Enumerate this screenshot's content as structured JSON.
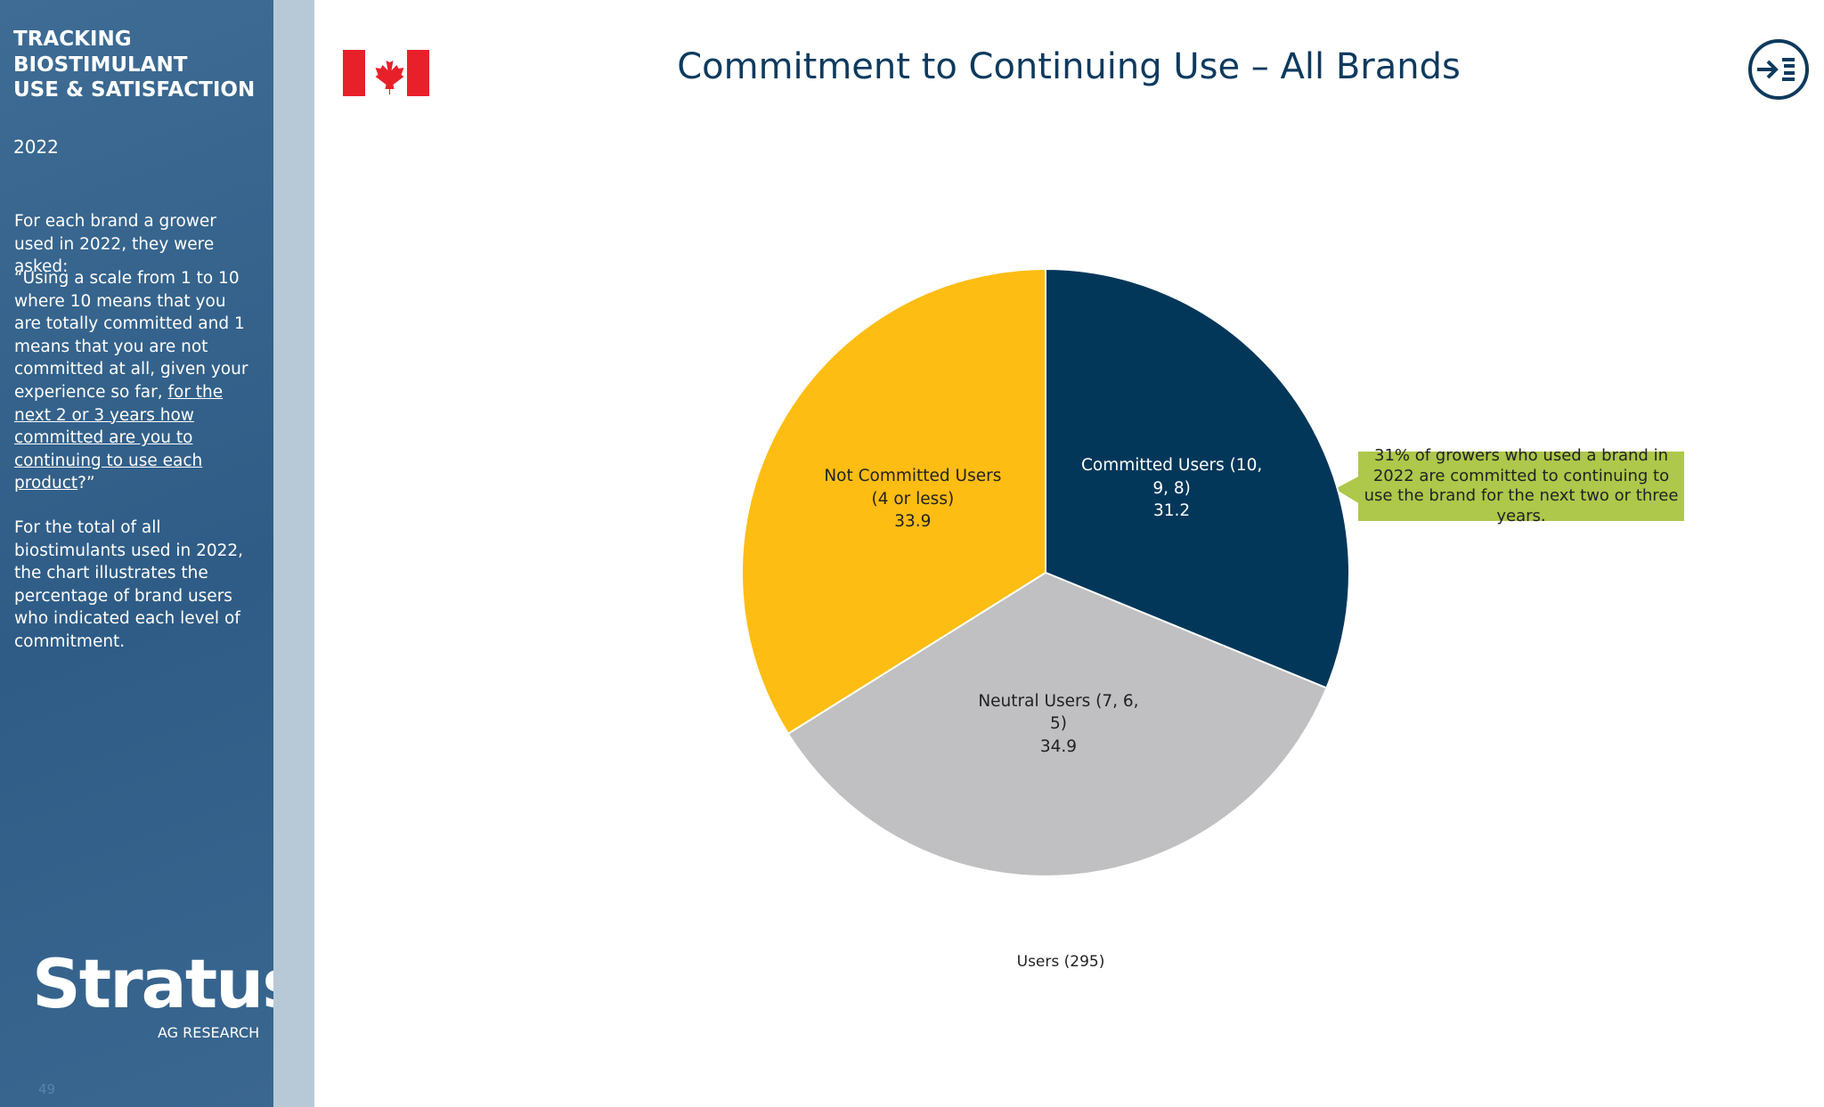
{
  "sidebar": {
    "title_lines": [
      "TRACKING",
      "BIOSTIMULANT",
      "USE & SATISFACTION"
    ],
    "year": "2022",
    "intro": "For each brand a grower used in 2022, they were asked:",
    "question": {
      "before": "“Using a scale from 1 to 10 where 10 means that you are totally committed and 1 means that you are not committed at all, given your experience so far, ",
      "underlined": "for the next 2 or 3 years how committed are you to continuing to use each product",
      "after": "?”"
    },
    "explanation": "For the total of all biostimulants used in 2022, the chart illustrates the percentage of brand users who indicated each level of commitment.",
    "logo": "Stratus",
    "logo_sub": "AG RESEARCH",
    "page_number": "49"
  },
  "chart_data": {
    "type": "pie",
    "title": "Commitment to Continuing Use – All Brands",
    "categories": [
      "Committed Users (10, 9, 8)",
      "Neutral Users (7, 6, 5)",
      "Not Committed Users (4 or less)"
    ],
    "values": [
      31.2,
      34.9,
      33.9
    ],
    "colors": [
      "#02375a",
      "#c0bfc1",
      "#fdbd13"
    ],
    "label_colors": [
      "#ffffff",
      "#222222",
      "#222222"
    ],
    "base_note": "Users (295)",
    "callout": "31% of growers who used a brand in 2022 are committed to continuing to use the brand for the next two or three years."
  }
}
